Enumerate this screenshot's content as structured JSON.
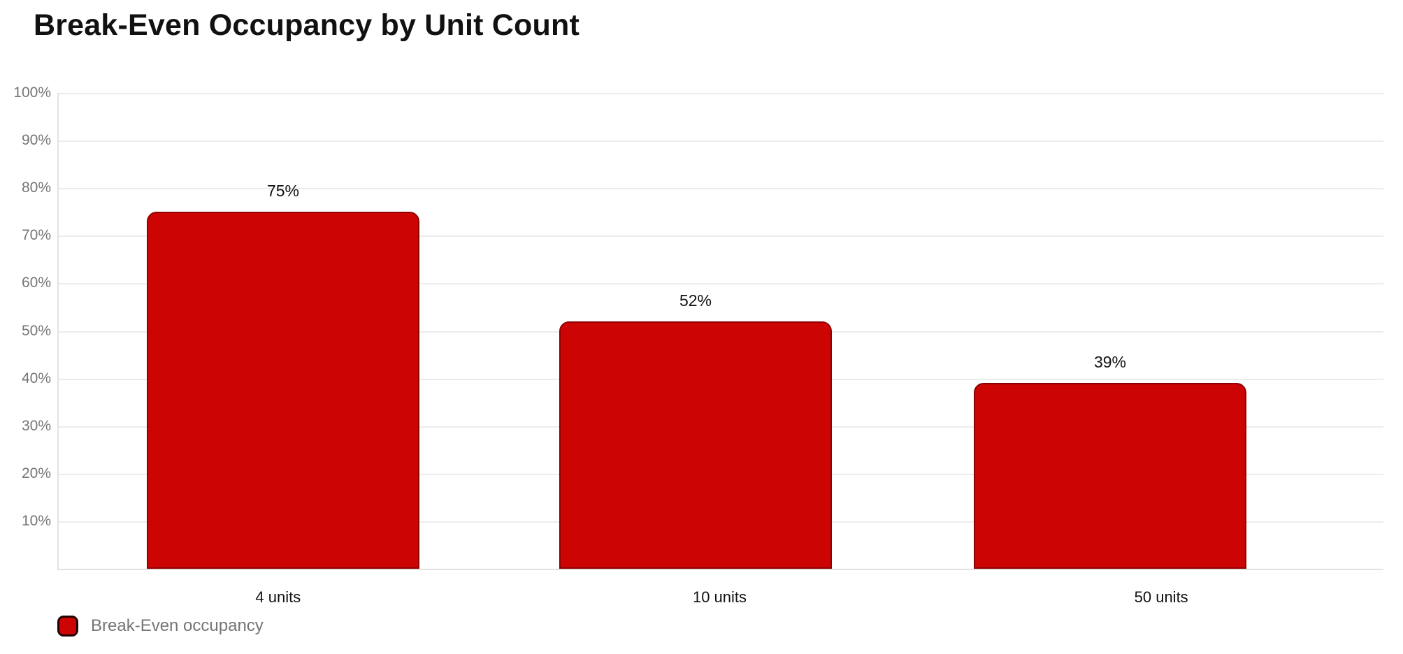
{
  "header": {
    "title": "Break-Even Occupancy by Unit Count"
  },
  "legend": {
    "label": "Break-Even occupancy",
    "swatch_icon": "red-rounded-square"
  },
  "colors": {
    "background": "#ffffff",
    "title_text": "#111111",
    "bar_fill": "#cc0404",
    "bar_border": "#8f0000",
    "gridline": "#ececec",
    "axis_line": "#e2e2e2",
    "y_tick_text": "#757575",
    "x_tick_text": "#111111",
    "data_label_text": "#111111",
    "legend_text": "#757575",
    "legend_swatch_border": "#230303"
  },
  "chart_data": {
    "type": "bar",
    "title": "Break-Even Occupancy by Unit Count",
    "categories": [
      "4 units",
      "10 units",
      "50 units"
    ],
    "series": [
      {
        "name": "Break-Even occupancy",
        "values": [
          75,
          52,
          39
        ]
      }
    ],
    "data_labels": [
      "75%",
      "52%",
      "39%"
    ],
    "xlabel": "",
    "ylabel": "",
    "ylim": [
      0,
      100
    ],
    "y_tick_step": 10,
    "y_ticks": [
      "100%",
      "90%",
      "80%",
      "70%",
      "60%",
      "50%",
      "40%",
      "30%",
      "20%",
      "10%"
    ],
    "grid": true,
    "bar_corner_style": "rounded-top",
    "legend_position": "bottom-left"
  }
}
